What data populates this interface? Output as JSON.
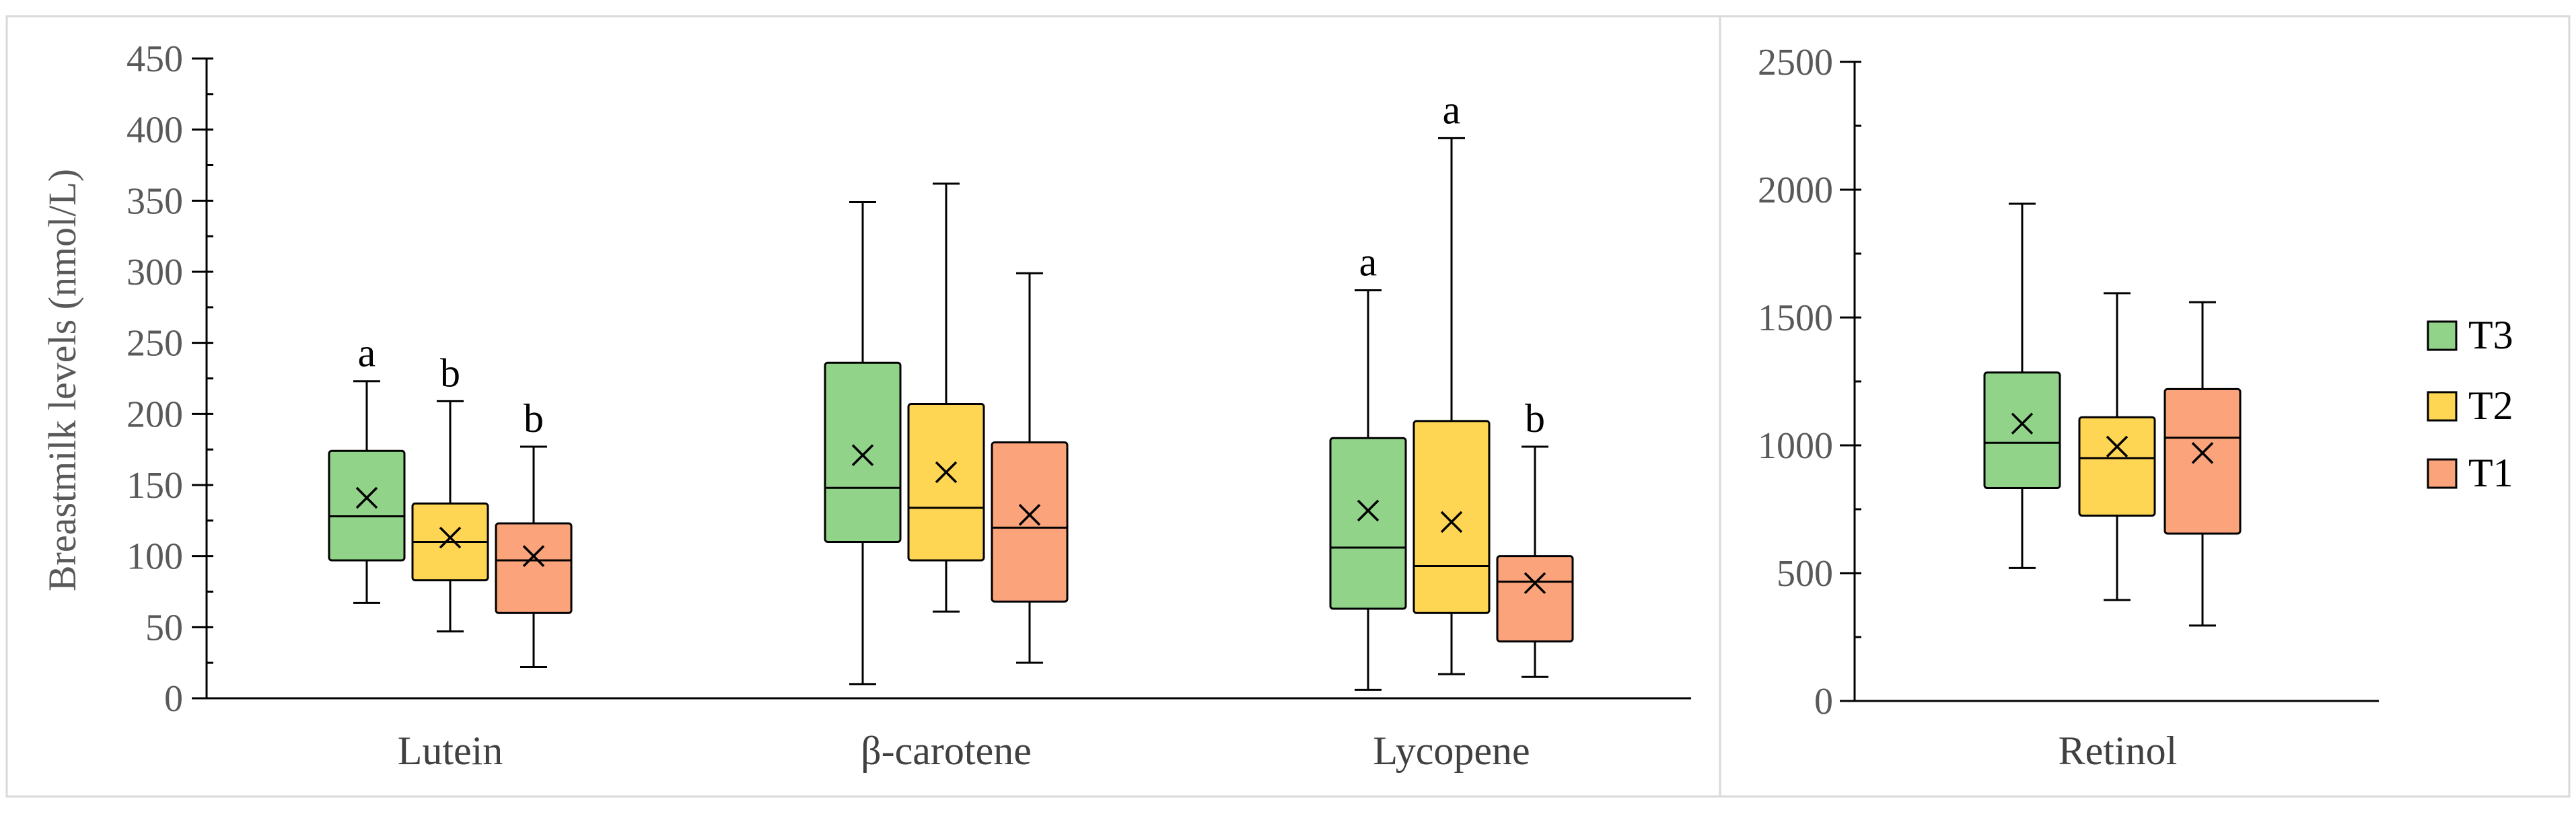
{
  "chart_data": [
    {
      "type": "boxplot",
      "title": "",
      "xlabel": "",
      "ylabel": "Breastmilk levels (nmol/L)",
      "ylim": [
        0,
        450
      ],
      "yticks": [
        0,
        50,
        100,
        150,
        200,
        250,
        300,
        350,
        400,
        450
      ],
      "grid": false,
      "categories": [
        "Lutein",
        "β-carotene",
        "Lycopene"
      ],
      "series": [
        {
          "name": "T3",
          "boxes": [
            {
              "category": "Lutein",
              "min": 67,
              "q1": 97,
              "median": 128,
              "q3": 174,
              "max": 223,
              "mean": 141,
              "sig": "a"
            },
            {
              "category": "β-carotene",
              "min": 10,
              "q1": 110,
              "median": 148,
              "q3": 236,
              "max": 349,
              "mean": 171,
              "sig": ""
            },
            {
              "category": "Lycopene",
              "min": 6,
              "q1": 63,
              "median": 106,
              "q3": 183,
              "max": 287,
              "mean": 132,
              "sig": "a"
            }
          ]
        },
        {
          "name": "T2",
          "boxes": [
            {
              "category": "Lutein",
              "min": 47,
              "q1": 83,
              "median": 110,
              "q3": 137,
              "max": 209,
              "mean": 113,
              "sig": "b"
            },
            {
              "category": "β-carotene",
              "min": 61,
              "q1": 97,
              "median": 134,
              "q3": 207,
              "max": 362,
              "mean": 159,
              "sig": ""
            },
            {
              "category": "Lycopene",
              "min": 17,
              "q1": 60,
              "median": 93,
              "q3": 195,
              "max": 394,
              "mean": 124,
              "sig": "a"
            }
          ]
        },
        {
          "name": "T1",
          "boxes": [
            {
              "category": "Lutein",
              "min": 22,
              "q1": 60,
              "median": 97,
              "q3": 123,
              "max": 177,
              "mean": 100,
              "sig": "b"
            },
            {
              "category": "β-carotene",
              "min": 25,
              "q1": 68,
              "median": 120,
              "q3": 180,
              "max": 299,
              "mean": 129,
              "sig": ""
            },
            {
              "category": "Lycopene",
              "min": 15,
              "q1": 40,
              "median": 82,
              "q3": 100,
              "max": 177,
              "mean": 81,
              "sig": "b"
            }
          ]
        }
      ]
    },
    {
      "type": "boxplot",
      "title": "",
      "xlabel": "",
      "ylabel": "",
      "ylim": [
        0,
        2500
      ],
      "yticks": [
        0,
        500,
        1000,
        1500,
        2000,
        2500
      ],
      "grid": false,
      "categories": [
        "Retinol"
      ],
      "series": [
        {
          "name": "T3",
          "boxes": [
            {
              "category": "Retinol",
              "min": 520,
              "q1": 833,
              "median": 1010,
              "q3": 1285,
              "max": 1945,
              "mean": 1085,
              "sig": ""
            }
          ]
        },
        {
          "name": "T2",
          "boxes": [
            {
              "category": "Retinol",
              "min": 395,
              "q1": 725,
              "median": 950,
              "q3": 1110,
              "max": 1595,
              "mean": 995,
              "sig": ""
            }
          ]
        },
        {
          "name": "T1",
          "boxes": [
            {
              "category": "Retinol",
              "min": 295,
              "q1": 655,
              "median": 1030,
              "q3": 1220,
              "max": 1560,
              "mean": 970,
              "sig": ""
            }
          ]
        }
      ]
    }
  ],
  "legend": {
    "position": "right",
    "items": [
      {
        "label": "T3",
        "color": "#92d38a"
      },
      {
        "label": "T2",
        "color": "#ffd653"
      },
      {
        "label": "T1",
        "color": "#fba47c"
      }
    ]
  },
  "colors": {
    "T3": "#92d38a",
    "T2": "#ffd653",
    "T1": "#fba47c",
    "frame": "#d9d9d9",
    "axis": "#000000"
  },
  "mean_marker": "x-mark"
}
